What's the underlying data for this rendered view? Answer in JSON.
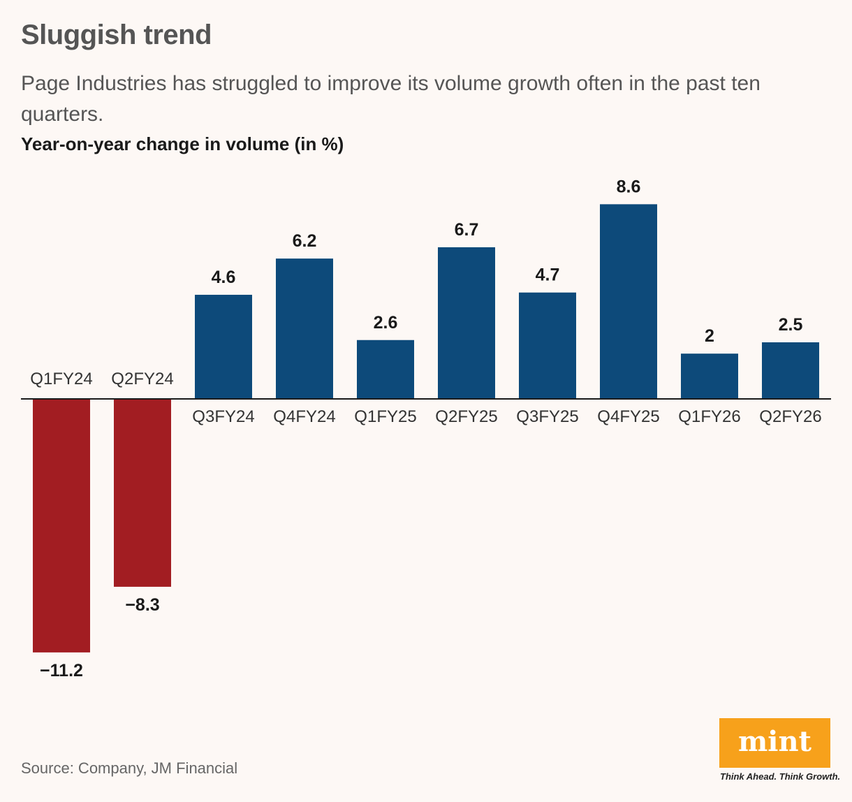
{
  "title": "Sluggish trend",
  "subtitle": "Page Industries has struggled to improve its volume growth often in the past ten quarters.",
  "source": "Source: Company, JM Financial",
  "brand": {
    "logo_text": "mint",
    "tagline": "Think Ahead. Think Growth."
  },
  "colors": {
    "positive": "#0d4a7a",
    "negative": "#a21d22",
    "logo": "#f7a11b"
  },
  "chart_data": {
    "type": "bar",
    "title": "Sluggish trend",
    "ylabel": "Year-on-year change in volume (in %)",
    "categories": [
      "Q1FY24",
      "Q2FY24",
      "Q3FY24",
      "Q4FY24",
      "Q1FY25",
      "Q2FY25",
      "Q3FY25",
      "Q4FY25",
      "Q1FY26",
      "Q2FY26"
    ],
    "values": [
      -11.2,
      -8.3,
      4.6,
      6.2,
      2.6,
      6.7,
      4.7,
      8.6,
      2,
      2.5
    ],
    "value_labels": [
      "−11.2",
      "−8.3",
      "4.6",
      "6.2",
      "2.6",
      "6.7",
      "4.7",
      "8.6",
      "2",
      "2.5"
    ],
    "ylim": [
      -11.2,
      8.6
    ],
    "grid": false,
    "legend": "none"
  }
}
